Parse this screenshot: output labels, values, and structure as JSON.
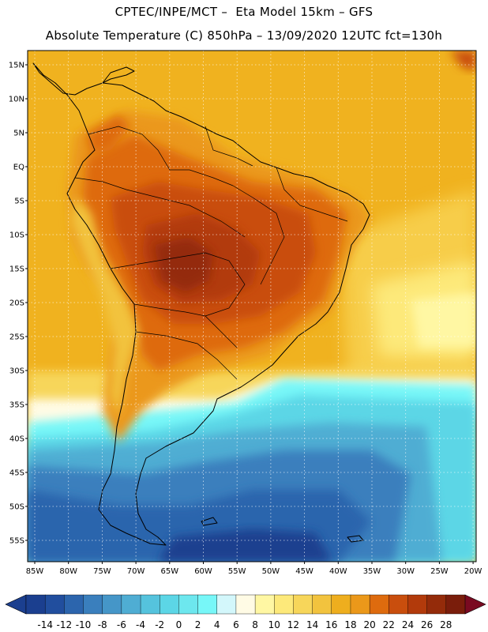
{
  "header": {
    "line1": "CPTEC/INPE/MCT –  Eta Model 15km – GFS",
    "line2": "Absolute Temperature (C) 850hPa – 13/09/2020 12UTC fct=130h"
  },
  "map": {
    "lat_labels": [
      "15N",
      "10N",
      "5N",
      "EQ",
      "5S",
      "10S",
      "15S",
      "20S",
      "25S",
      "30S",
      "35S",
      "40S",
      "45S",
      "50S",
      "55S"
    ],
    "lon_labels": [
      "85W",
      "80W",
      "75W",
      "70W",
      "65W",
      "60W",
      "55W",
      "50W",
      "45W",
      "40W",
      "35W",
      "30W",
      "25W",
      "20W"
    ],
    "region": "South America",
    "grid": true
  },
  "colorbar": {
    "ticks": [
      "-14",
      "-12",
      "-10",
      "-8",
      "-6",
      "-4",
      "-2",
      "0",
      "2",
      "4",
      "6",
      "8",
      "10",
      "12",
      "14",
      "16",
      "18",
      "20",
      "22",
      "24",
      "26",
      "28"
    ],
    "colors": [
      "#1b3f8f",
      "#214e9e",
      "#2c65ad",
      "#3a7fbd",
      "#4596c8",
      "#4fadd3",
      "#55c3dd",
      "#5cd6e6",
      "#6de7ee",
      "#77f7f8",
      "#d3f7fb",
      "#fffbe5",
      "#fff7a3",
      "#fde97a",
      "#f7d65a",
      "#f2c33e",
      "#eeae1e",
      "#eb981a",
      "#de6b0e",
      "#c94e0d",
      "#b23a0b",
      "#942b0a",
      "#7a1d0b"
    ],
    "under_color": "#1b3f8f",
    "over_color": "#7a0a21"
  }
}
